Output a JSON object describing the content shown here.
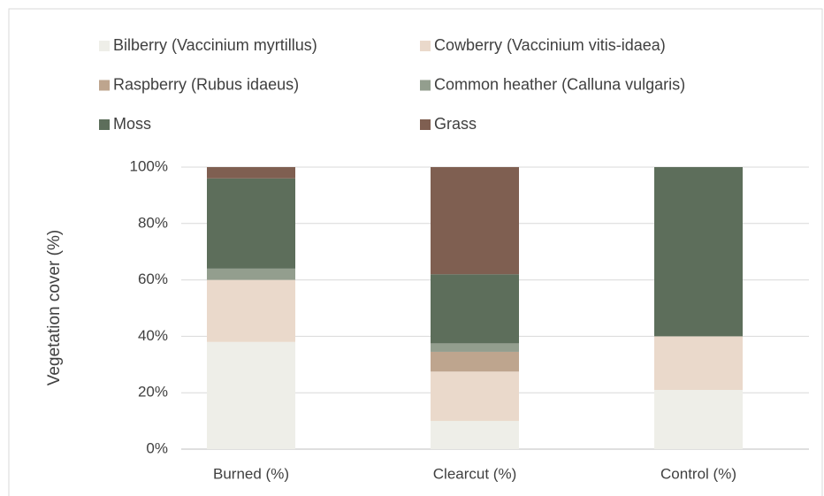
{
  "chart_data": {
    "type": "stacked-bar",
    "y_label": "Vegetation cover (%)",
    "categories": [
      "Burned (%)",
      "Clearcut (%)",
      "Control (%)"
    ],
    "series": [
      {
        "name": "Bilberry (Vaccinium myrtillus)",
        "color": "#eeeee8",
        "values": [
          38,
          10,
          21
        ]
      },
      {
        "name": "Cowberry (Vaccinium vitis-idaea)",
        "color": "#ead9cb",
        "values": [
          22,
          17.5,
          19
        ]
      },
      {
        "name": "Raspberry (Rubus idaeus)",
        "color": "#bea58e",
        "values": [
          0,
          7,
          0
        ]
      },
      {
        "name": "Common heather (Calluna vulgaris)",
        "color": "#939e8e",
        "values": [
          4,
          3,
          0
        ]
      },
      {
        "name": "Moss",
        "color": "#5d6e5b",
        "values": [
          32,
          24.5,
          60
        ]
      },
      {
        "name": "Grass",
        "color": "#7f5f51",
        "values": [
          4,
          38,
          0
        ]
      }
    ],
    "ylim": [
      0,
      100
    ],
    "yticks": [
      {
        "value": 0,
        "label": "0%"
      },
      {
        "value": 20,
        "label": "20%"
      },
      {
        "value": 40,
        "label": "40%"
      },
      {
        "value": 60,
        "label": "60%"
      },
      {
        "value": 80,
        "label": "80%"
      },
      {
        "value": 100,
        "label": "100%"
      }
    ],
    "grid": true,
    "legend": "top"
  }
}
